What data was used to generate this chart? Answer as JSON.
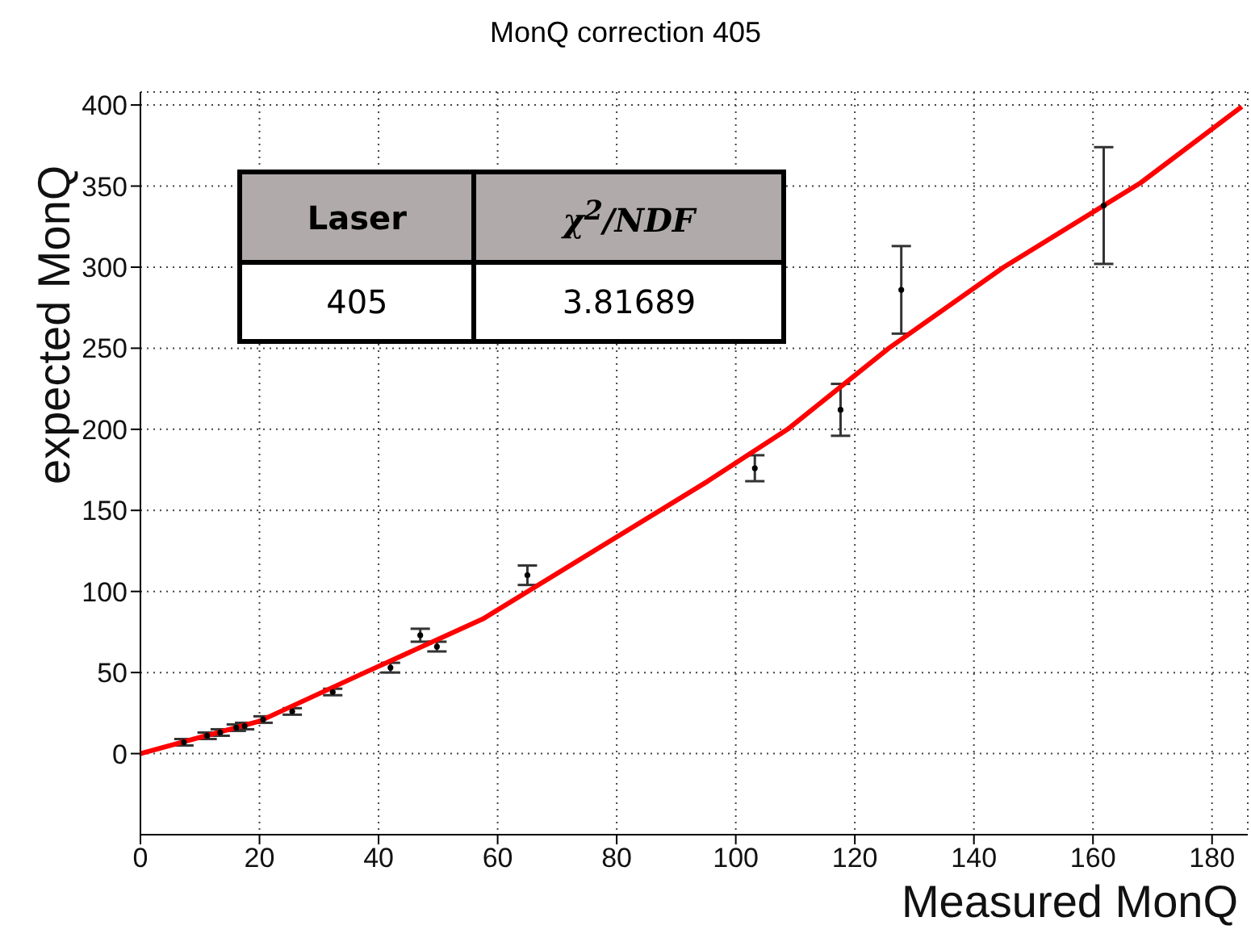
{
  "chart_data": {
    "type": "scatter",
    "title": "MonQ correction 405",
    "xlabel": "Measured MonQ",
    "ylabel": "expected MonQ",
    "xlim": [
      0,
      186
    ],
    "xticks": [
      0,
      20,
      40,
      60,
      80,
      100,
      120,
      140,
      160,
      180
    ],
    "ylim": [
      -50,
      408
    ],
    "yticks": [
      0,
      50,
      100,
      150,
      200,
      250,
      300,
      350,
      400
    ],
    "grid": true,
    "annotations": [
      "Laser",
      "χ$^{2}$/NDF",
      "405",
      "3.81689"
    ],
    "series": [
      {
        "marker": "circle",
        "color": "#000000",
        "x": [
          7.3,
          11.2,
          13.4,
          16.1,
          17.5,
          20.6,
          25.5,
          32.3,
          42,
          47,
          49.8,
          65,
          103.2,
          117.6,
          127.8,
          161.8
        ],
        "values": [
          7,
          11,
          13,
          16,
          17,
          21,
          26,
          38,
          53,
          73,
          66,
          110,
          176,
          212,
          286,
          338
        ],
        "errors": [
          2,
          2,
          2,
          2,
          2,
          2,
          2,
          2,
          3,
          4,
          3,
          6,
          8,
          16,
          27,
          36
        ]
      },
      {
        "type": "line",
        "marker": "none",
        "color": "#ff0000",
        "x": [
          0,
          20,
          37.7,
          57.5,
          95.3,
          108.7,
          125.7,
          145,
          168,
          185
        ],
        "values": [
          0,
          20,
          50,
          83,
          168,
          200,
          250,
          300,
          352,
          399
        ]
      }
    ]
  }
}
